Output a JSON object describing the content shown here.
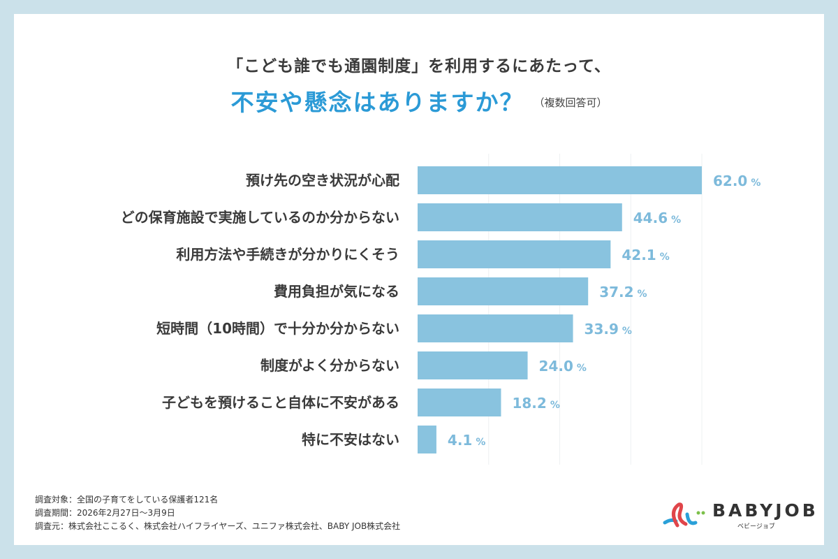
{
  "title_line1": "「こども誰でも通園制度」を利用するにあたって、",
  "title_line2": "不安や懸念はありますか？",
  "title_note": "（複数回答可）",
  "chart_data": {
    "type": "bar",
    "orientation": "horizontal",
    "categories": [
      "預け先の空き状況が心配",
      "どの保育施設で実施しているのか分からない",
      "利用方法や手続きが分かりにくそう",
      "費用負担が気になる",
      "短時間（10時間）で十分か分からない",
      "制度がよく分からない",
      "子どもを預けること自体に不安がある",
      "特に不安はない"
    ],
    "values": [
      62.0,
      44.6,
      42.1,
      37.2,
      33.9,
      24.0,
      18.2,
      4.1
    ],
    "value_unit": "%",
    "bar_color": "#89c3df",
    "label_color": "#7dbadb",
    "grid": true,
    "xlim": [
      0,
      62
    ]
  },
  "footer": [
    "調査対象：全国の子育てをしている保護者121名",
    "調査期間：2026年2月27日〜3月9日",
    "調査元：株式会社ここるく、株式会社ハイフライヤーズ、ユニファ株式会社、BABY JOB株式会社"
  ],
  "logo": {
    "name": "BABYJOB",
    "sub": "ベビージョブ"
  }
}
